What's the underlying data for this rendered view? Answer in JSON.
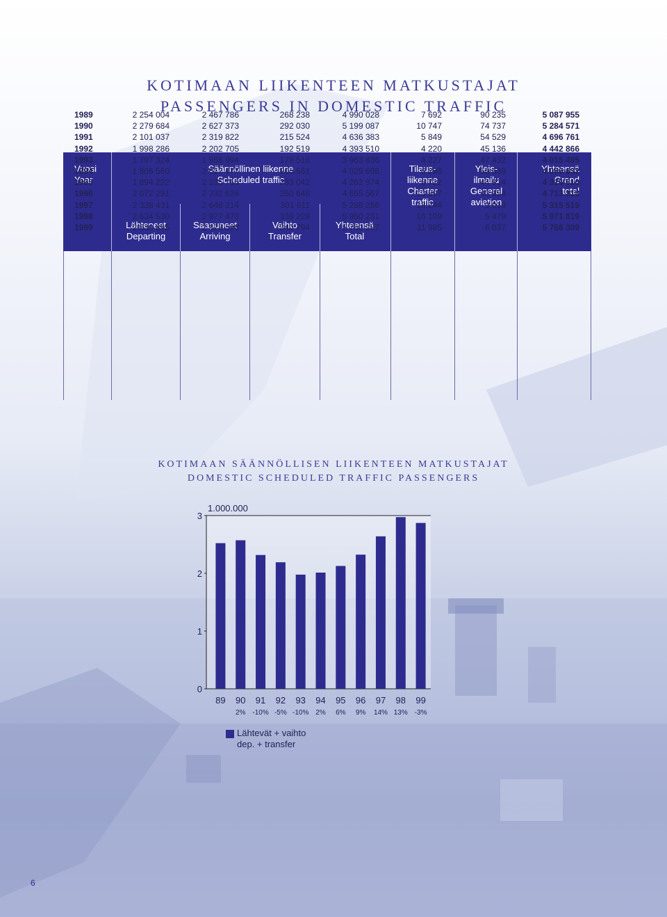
{
  "titles": {
    "fi": "KOTIMAAN LIIKENTEEN MATKUSTAJAT",
    "en": "PASSENGERS IN DOMESTIC TRAFFIC"
  },
  "table": {
    "year_header": [
      "Vuosi",
      "Year"
    ],
    "scheduled_header": [
      "Säännöllinen liikenne",
      "Scheduled traffic"
    ],
    "charter_header": [
      "Tilaus-",
      "liikenne",
      "Charter",
      "traffic"
    ],
    "general_header": [
      "Yleis-",
      "ilmailu",
      "General",
      "aviation"
    ],
    "grand_header": [
      "Yhteensä",
      "Grand",
      "total"
    ],
    "sub_departing": [
      "Lähteneet",
      "Departing"
    ],
    "sub_arriving": [
      "Saapuneet",
      "Arriving"
    ],
    "sub_transfer": [
      "Vaihto",
      "Transfer"
    ],
    "sub_total": [
      "Yhteensä",
      "Total"
    ],
    "rows": [
      [
        "1989",
        "2 254 004",
        "2 467 786",
        "268 238",
        "4 990 028",
        "7 692",
        "90 235",
        "5 087 955"
      ],
      [
        "1990",
        "2 279 684",
        "2 627 373",
        "292 030",
        "5 199 087",
        "10 747",
        "74 737",
        "5 284 571"
      ],
      [
        "1991",
        "2 101 037",
        "2 319 822",
        "215 524",
        "4 636 383",
        "5 849",
        "54 529",
        "4 696 761"
      ],
      [
        "1992",
        "1 998 286",
        "2 202 705",
        "192 519",
        "4 393 510",
        "4 220",
        "45 136",
        "4 442 866"
      ],
      [
        "1993",
        "1 797 324",
        "1 986 994",
        "179 518",
        "3 963 836",
        "4 227",
        "47 432",
        "4 015 495"
      ],
      [
        "1994",
        "1 806 560",
        "2 017 477",
        "205 661",
        "4 029 698",
        "6 296",
        "50 638",
        "4 086 632"
      ],
      [
        "1995",
        "1 894 222",
        "2 135 710",
        "233 042",
        "4 262 974",
        "8 722",
        "44 914",
        "4 316 610"
      ],
      [
        "1996",
        "2 072 291",
        "2 332 628",
        "250 648",
        "4 655 567",
        "13 697",
        "43 954",
        "4 713 218"
      ],
      [
        "1997",
        "2 338 431",
        "2 648 214",
        "301 611",
        "5 288 256",
        "18 244",
        "9 019",
        "5 315 519"
      ],
      [
        "1998",
        "2 634 530",
        "2 977 473",
        "338 228",
        "5 950 231",
        "16 109",
        "5 479",
        "5 971 819"
      ],
      [
        "1999",
        "2 530 895",
        "2 878 598",
        "340 794",
        "5 750 287",
        "11 985",
        "6 037",
        "5 768 309"
      ]
    ]
  },
  "chart_titles": {
    "fi": "KOTIMAAN SÄÄNNÖLLISEN LIIKENTEEN MATKUSTAJAT",
    "en": "DOMESTIC SCHEDULED TRAFFIC PASSENGERS"
  },
  "chart_data": {
    "type": "bar",
    "unit_label": "1.000.000",
    "categories": [
      "89",
      "90",
      "91",
      "92",
      "93",
      "94",
      "95",
      "96",
      "97",
      "98",
      "99"
    ],
    "change_labels": [
      "",
      "2%",
      "-10%",
      "-5%",
      "-10%",
      "2%",
      "6%",
      "9%",
      "14%",
      "13%",
      "-3%"
    ],
    "series": [
      {
        "name": "Lähtevät + vaihto dep. + transfer",
        "values": [
          2.522,
          2.572,
          2.317,
          2.191,
          1.977,
          2.012,
          2.127,
          2.323,
          2.64,
          2.973,
          2.872
        ]
      }
    ],
    "ylim": [
      0,
      3
    ],
    "yticks": [
      "0",
      "1",
      "2",
      "3"
    ],
    "bar_color": "#2e2b8e"
  },
  "legend": {
    "line1": "Lähtevät + vaihto",
    "line2": "dep. + transfer"
  },
  "page_number": "6"
}
